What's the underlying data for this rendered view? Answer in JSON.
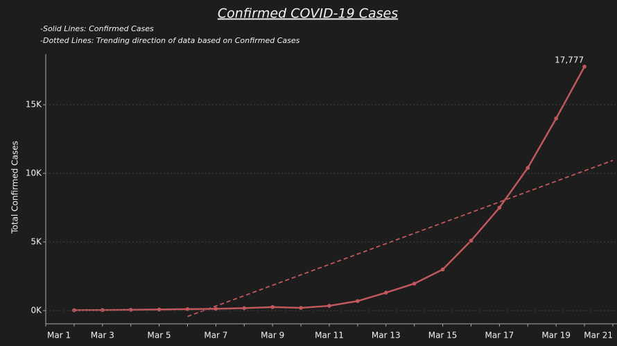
{
  "chart_data": {
    "type": "line",
    "title": "Confirmed COVID-19 Cases",
    "subtitle": [
      "-Solid Lines: Confirmed Cases",
      "-Dotted Lines: Trending direction of data based on Confirmed Cases"
    ],
    "y_label": "Total Confirmed Cases",
    "categories": [
      "Mar 1",
      null,
      "Mar 3",
      null,
      "Mar 5",
      null,
      "Mar 7",
      null,
      "Mar 9",
      null,
      "Mar 11",
      null,
      "Mar 13",
      null,
      "Mar 15",
      null,
      "Mar 17",
      null,
      "Mar 19",
      null,
      "Mar 21"
    ],
    "series": [
      {
        "name": "Confirmed Cases",
        "color": "#c1585c",
        "dashed": false,
        "values": [
          null,
          30,
          40,
          60,
          80,
          110,
          130,
          180,
          260,
          200,
          350,
          700,
          1310,
          1970,
          3000,
          5100,
          7500,
          10400,
          14000,
          17777,
          null
        ],
        "value_labels": [
          null,
          null,
          null,
          null,
          null,
          null,
          null,
          null,
          null,
          null,
          null,
          null,
          null,
          null,
          null,
          null,
          null,
          null,
          null,
          "17,777",
          null
        ]
      },
      {
        "name": "Trend",
        "color": "#c1585c",
        "dashed": true,
        "values": [
          null,
          null,
          null,
          null,
          null,
          -425,
          333,
          1091,
          1849,
          2607,
          3365,
          4123,
          4881,
          5639,
          6397,
          7155,
          7913,
          8671,
          9429,
          10187,
          10945
        ]
      }
    ],
    "ylim": [
      -960,
      18690
    ],
    "yticks": [
      {
        "value": 0,
        "label": "0K"
      },
      {
        "value": 5000,
        "label": "5K"
      },
      {
        "value": 10000,
        "label": "10K"
      },
      {
        "value": 15000,
        "label": "15K"
      }
    ],
    "grid": true
  }
}
